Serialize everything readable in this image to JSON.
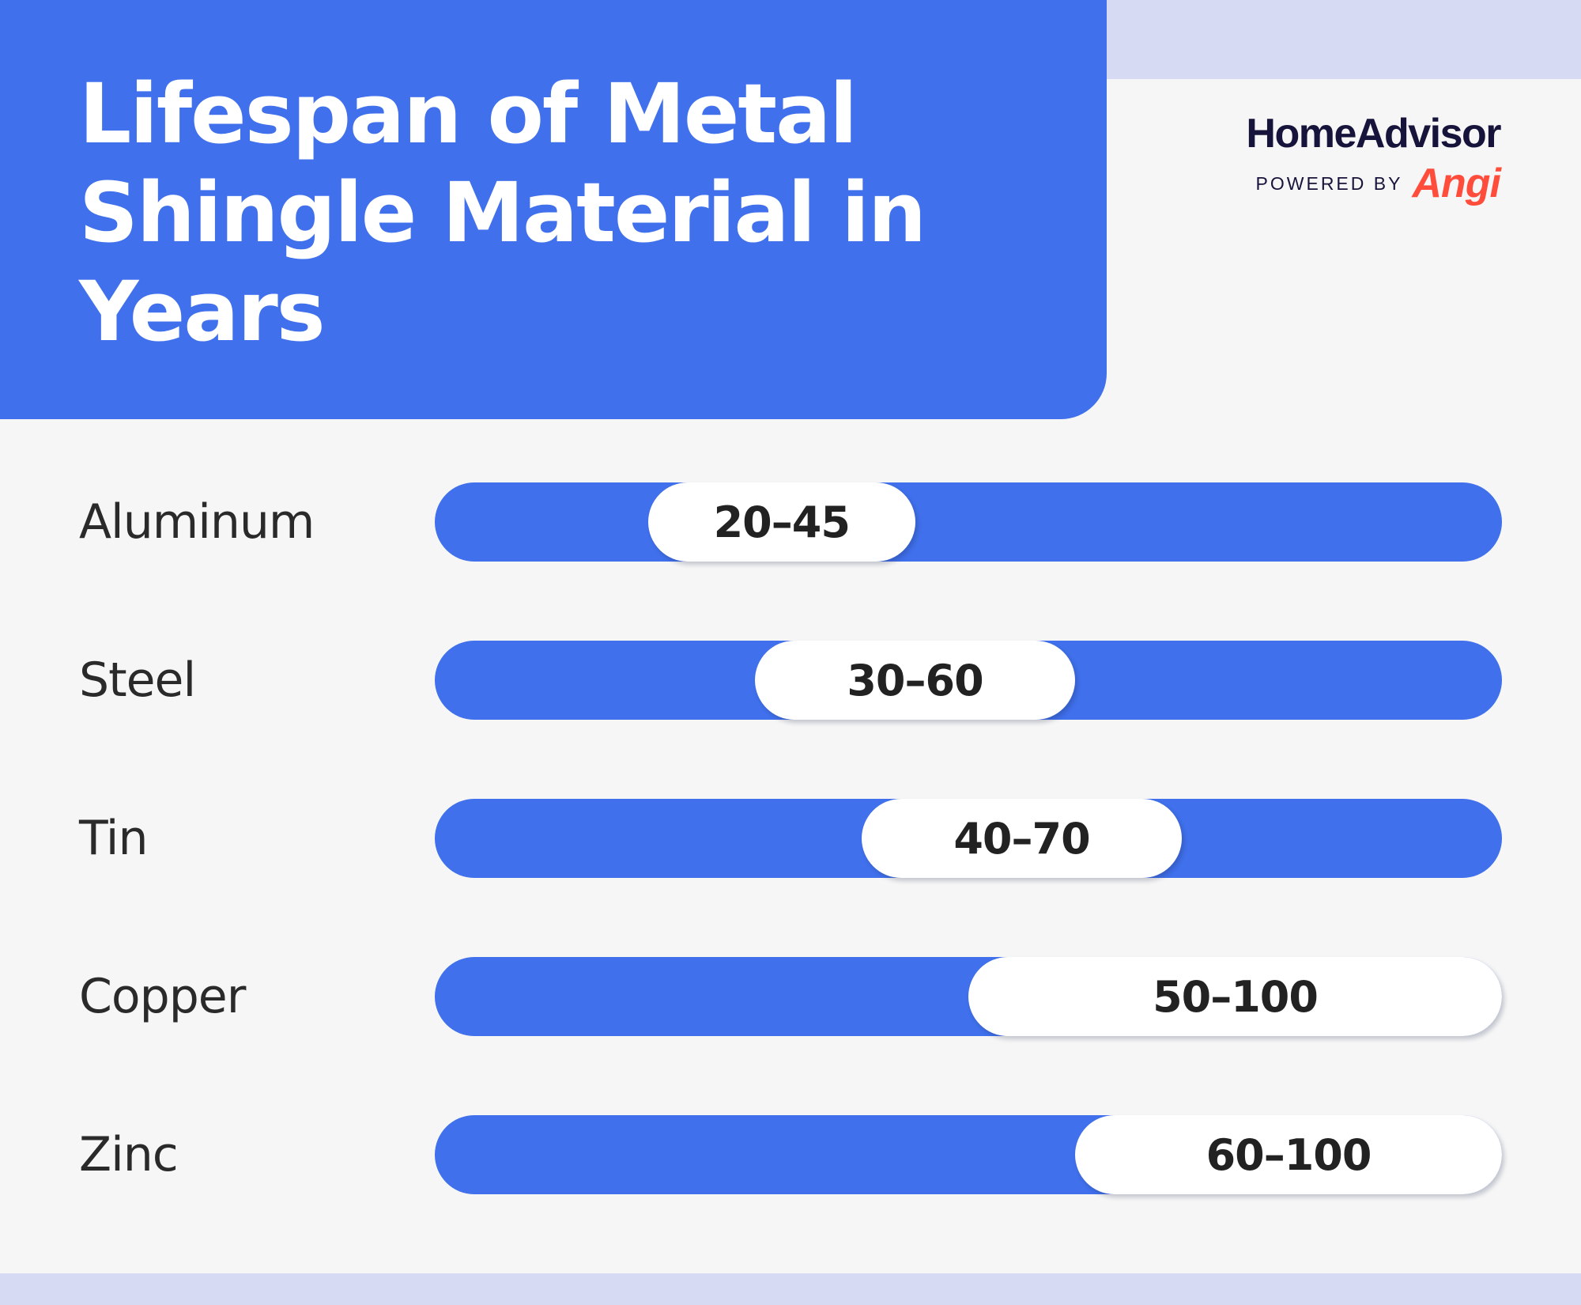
{
  "title": "Lifespan of Metal Shingle Material in Years",
  "logo": {
    "name": "HomeAdvisor",
    "powered_by": "POWERED BY",
    "brand": "Angi"
  },
  "colors": {
    "accent": "#4070ec",
    "background": "#f6f6f6",
    "band": "#d6daf2",
    "pill": "#ffffff",
    "text": "#222222",
    "logo_text": "#17143b",
    "brand_red": "#ff4c3b"
  },
  "chart_data": {
    "type": "bar",
    "title": "Lifespan of Metal Shingle Material in Years",
    "xlabel": "",
    "ylabel": "",
    "xlim": [
      0,
      100
    ],
    "grid": false,
    "legend": "none",
    "categories": [
      "Aluminum",
      "Steel",
      "Tin",
      "Copper",
      "Zinc"
    ],
    "ranges": [
      {
        "category": "Aluminum",
        "min": 20,
        "max": 45,
        "label": "20–45"
      },
      {
        "category": "Steel",
        "min": 30,
        "max": 60,
        "label": "30–60"
      },
      {
        "category": "Tin",
        "min": 40,
        "max": 70,
        "label": "40–70"
      },
      {
        "category": "Copper",
        "min": 50,
        "max": 100,
        "label": "50–100"
      },
      {
        "category": "Zinc",
        "min": 60,
        "max": 100,
        "label": "60–100"
      }
    ]
  }
}
